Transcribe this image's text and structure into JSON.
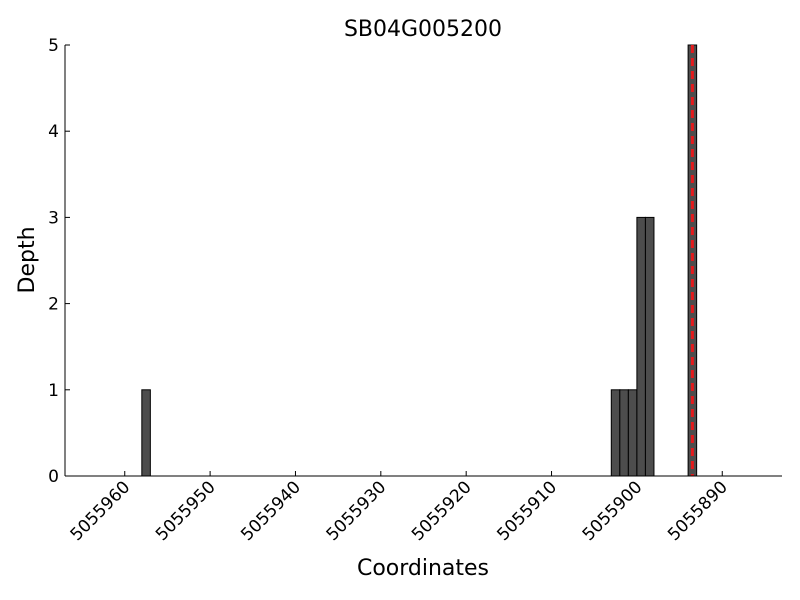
{
  "chart_data": {
    "type": "bar",
    "title": "SB04G005200",
    "x_label": "Coordinates",
    "y_label": "Depth",
    "x": [
      5055957,
      5055902,
      5055901,
      5055900,
      5055899,
      5055898,
      5055893
    ],
    "values": [
      1,
      1,
      1,
      1,
      3,
      3,
      5
    ],
    "bar_width": 1,
    "color": "#4d4d4d",
    "xlim": [
      5055967,
      5055883
    ],
    "xticks": [
      5055960,
      5055950,
      5055940,
      5055930,
      5055920,
      5055910,
      5055900,
      5055890
    ],
    "ylim": [
      0,
      5
    ],
    "yticks": [
      0,
      1,
      2,
      3,
      4,
      5
    ],
    "vline": {
      "x": 5055893.5,
      "color": "#e41a1c"
    }
  }
}
